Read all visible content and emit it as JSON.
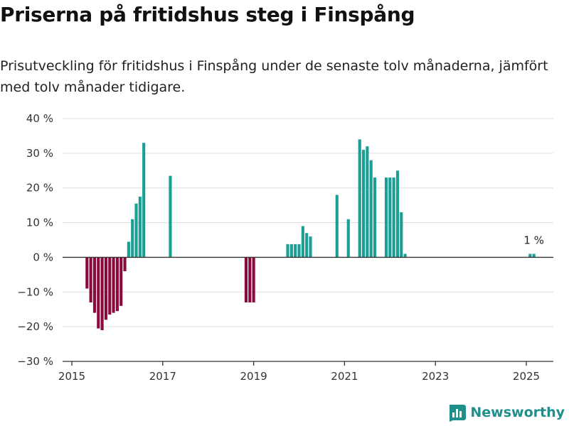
{
  "title": "Priserna på fritidshus steg i Finspång",
  "subtitle": "Prisutveckling för fritidshus i Finspång under de senaste tolv månaderna, jämfört med tolv månader tidigare.",
  "brand": {
    "name": "Newsworthy",
    "icon": "bar-chart-logo-icon"
  },
  "colors": {
    "positive": "#1a9e96",
    "negative": "#8b0a3d",
    "grid": "#dddddd",
    "axis": "#333333"
  },
  "chart_data": {
    "type": "bar",
    "title": "",
    "xlabel": "",
    "ylabel": "",
    "ylim": [
      -30,
      40
    ],
    "xlim": [
      "2015-01",
      "2025-12"
    ],
    "y_ticks": [
      -30,
      -20,
      -10,
      0,
      10,
      20,
      30,
      40
    ],
    "y_tick_labels": [
      "−30 %",
      "−20 %",
      "−10 %",
      "0 %",
      "10 %",
      "20 %",
      "30 %",
      "40 %"
    ],
    "x_tick_labels": [
      "2015",
      "2017",
      "2019",
      "2021",
      "2023",
      "2025"
    ],
    "grid": true,
    "annotations": [
      {
        "text": "1 %",
        "x": "2025-03",
        "y": 1
      }
    ],
    "series": [
      {
        "values": [
          {
            "x": "2015-05",
            "y": -9
          },
          {
            "x": "2015-06",
            "y": -13
          },
          {
            "x": "2015-07",
            "y": -16
          },
          {
            "x": "2015-08",
            "y": -20.5
          },
          {
            "x": "2015-09",
            "y": -21
          },
          {
            "x": "2015-10",
            "y": -18
          },
          {
            "x": "2015-11",
            "y": -16.5
          },
          {
            "x": "2015-12",
            "y": -16
          },
          {
            "x": "2016-01",
            "y": -15.5
          },
          {
            "x": "2016-02",
            "y": -14
          },
          {
            "x": "2016-03",
            "y": -4
          },
          {
            "x": "2016-04",
            "y": 4.5
          },
          {
            "x": "2016-05",
            "y": 11
          },
          {
            "x": "2016-06",
            "y": 15.5
          },
          {
            "x": "2016-07",
            "y": 17.5
          },
          {
            "x": "2016-08",
            "y": 33
          },
          {
            "x": "2017-03",
            "y": 23.5
          },
          {
            "x": "2018-11",
            "y": -13
          },
          {
            "x": "2018-12",
            "y": -13
          },
          {
            "x": "2019-01",
            "y": -13
          },
          {
            "x": "2019-10",
            "y": 3.8
          },
          {
            "x": "2019-11",
            "y": 3.8
          },
          {
            "x": "2019-12",
            "y": 3.8
          },
          {
            "x": "2020-01",
            "y": 3.8
          },
          {
            "x": "2020-02",
            "y": 9
          },
          {
            "x": "2020-03",
            "y": 7
          },
          {
            "x": "2020-04",
            "y": 6
          },
          {
            "x": "2020-11",
            "y": 18
          },
          {
            "x": "2021-02",
            "y": 11
          },
          {
            "x": "2021-05",
            "y": 34
          },
          {
            "x": "2021-06",
            "y": 31
          },
          {
            "x": "2021-07",
            "y": 32
          },
          {
            "x": "2021-08",
            "y": 28
          },
          {
            "x": "2021-09",
            "y": 23
          },
          {
            "x": "2021-12",
            "y": 23
          },
          {
            "x": "2022-01",
            "y": 23
          },
          {
            "x": "2022-02",
            "y": 23
          },
          {
            "x": "2022-03",
            "y": 25
          },
          {
            "x": "2022-04",
            "y": 13
          },
          {
            "x": "2022-05",
            "y": 1
          },
          {
            "x": "2025-02",
            "y": 1
          },
          {
            "x": "2025-03",
            "y": 1
          }
        ]
      }
    ]
  }
}
